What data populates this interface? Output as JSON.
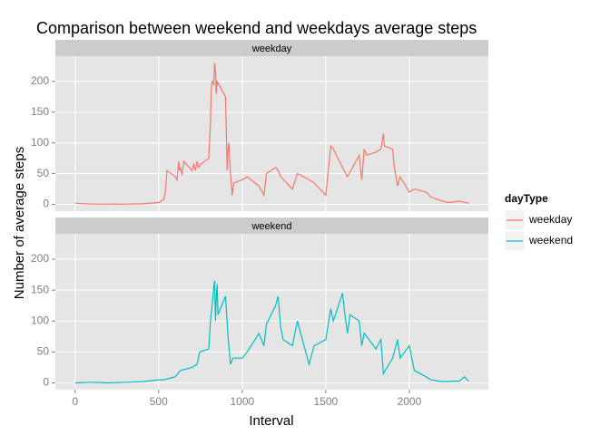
{
  "chart_data": {
    "type": "line",
    "facet": true,
    "title": "Comparison between weekend and weekdays average steps",
    "xlabel": "Interval",
    "ylabel": "Number of average steps",
    "legend_title": "dayType",
    "xlim": [
      -118,
      2473
    ],
    "xticks": [
      0,
      500,
      1000,
      1500,
      2000
    ],
    "ylim": [
      -11,
      241
    ],
    "yticks": [
      0,
      50,
      100,
      150,
      200
    ],
    "grid": true,
    "series": [
      {
        "name": "weekday",
        "color": "#f8766d",
        "x": [
          0,
          100,
          200,
          300,
          400,
          500,
          530,
          540,
          550,
          600,
          610,
          620,
          625,
          630,
          640,
          650,
          700,
          710,
          720,
          730,
          740,
          750,
          800,
          810,
          815,
          820,
          830,
          835,
          840,
          845,
          850,
          900,
          910,
          915,
          920,
          930,
          940,
          950,
          1000,
          1030,
          1100,
          1130,
          1145,
          1200,
          1215,
          1230,
          1300,
          1330,
          1400,
          1430,
          1500,
          1530,
          1545,
          1600,
          1630,
          1700,
          1715,
          1730,
          1745,
          1800,
          1830,
          1845,
          1850,
          1900,
          1910,
          1930,
          1945,
          2000,
          2030,
          2100,
          2130,
          2200,
          2230,
          2300,
          2355
        ],
        "values": [
          2,
          0.5,
          0.5,
          0.3,
          1,
          3,
          8,
          20,
          55,
          45,
          40,
          70,
          55,
          60,
          48,
          70,
          55,
          65,
          55,
          70,
          60,
          65,
          75,
          130,
          190,
          200,
          195,
          230,
          215,
          180,
          200,
          175,
          55,
          90,
          100,
          50,
          15,
          35,
          40,
          45,
          30,
          15,
          50,
          60,
          55,
          45,
          25,
          50,
          40,
          35,
          15,
          95,
          90,
          60,
          45,
          80,
          40,
          90,
          80,
          85,
          90,
          115,
          95,
          90,
          60,
          30,
          45,
          20,
          25,
          20,
          12,
          5,
          3,
          5,
          2
        ]
      },
      {
        "name": "weekend",
        "color": "#00bfc4",
        "x": [
          0,
          100,
          200,
          300,
          400,
          500,
          530,
          600,
          630,
          700,
          730,
          745,
          800,
          810,
          820,
          830,
          835,
          840,
          845,
          850,
          855,
          900,
          915,
          930,
          945,
          1000,
          1030,
          1100,
          1130,
          1145,
          1200,
          1215,
          1230,
          1245,
          1300,
          1330,
          1400,
          1430,
          1500,
          1530,
          1545,
          1600,
          1615,
          1630,
          1645,
          1700,
          1715,
          1730,
          1745,
          1800,
          1830,
          1845,
          1900,
          1930,
          1945,
          2000,
          2030,
          2100,
          2130,
          2200,
          2300,
          2330,
          2355
        ],
        "values": [
          0,
          1,
          0,
          1,
          2,
          5,
          5,
          10,
          20,
          25,
          30,
          50,
          55,
          100,
          125,
          155,
          165,
          100,
          140,
          160,
          110,
          140,
          75,
          30,
          40,
          40,
          50,
          80,
          60,
          95,
          125,
          140,
          90,
          70,
          60,
          100,
          30,
          60,
          70,
          120,
          100,
          145,
          110,
          80,
          110,
          100,
          60,
          80,
          75,
          55,
          70,
          15,
          40,
          70,
          40,
          60,
          20,
          10,
          5,
          2,
          3,
          10,
          3
        ]
      }
    ]
  }
}
